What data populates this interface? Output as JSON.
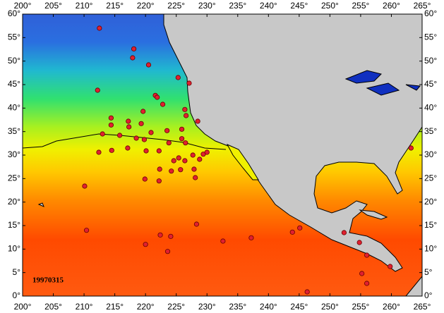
{
  "chart_data": {
    "type": "scatter",
    "annotation": "19970315",
    "xlim": [
      200,
      265
    ],
    "ylim": [
      0,
      60
    ],
    "xticks": [
      {
        "value": 200,
        "label": "200°"
      },
      {
        "value": 205,
        "label": "205°"
      },
      {
        "value": 210,
        "label": "210°"
      },
      {
        "value": 215,
        "label": "215°"
      },
      {
        "value": 220,
        "label": "220°"
      },
      {
        "value": 225,
        "label": "225°"
      },
      {
        "value": 230,
        "label": "230°"
      },
      {
        "value": 235,
        "label": "235°"
      },
      {
        "value": 240,
        "label": "240°"
      },
      {
        "value": 245,
        "label": "245°"
      },
      {
        "value": 250,
        "label": "250°"
      },
      {
        "value": 255,
        "label": "255°"
      },
      {
        "value": 260,
        "label": "260°"
      },
      {
        "value": 265,
        "label": "265°"
      }
    ],
    "yticks": [
      {
        "value": 0,
        "label": "0°"
      },
      {
        "value": 5,
        "label": "5°"
      },
      {
        "value": 10,
        "label": "10°"
      },
      {
        "value": 15,
        "label": "15°"
      },
      {
        "value": 20,
        "label": "20°"
      },
      {
        "value": 25,
        "label": "25°"
      },
      {
        "value": 30,
        "label": "30°"
      },
      {
        "value": 35,
        "label": "35°"
      },
      {
        "value": 40,
        "label": "40°"
      },
      {
        "value": 45,
        "label": "45°"
      },
      {
        "value": 50,
        "label": "50°"
      },
      {
        "value": 55,
        "label": "55°"
      },
      {
        "value": 60,
        "label": "60°"
      }
    ],
    "color": "#e02030",
    "x": [
      212.5,
      218.1,
      217.9,
      220.5,
      212.2,
      221.6,
      221.9,
      227.1,
      225.3,
      222.8,
      219.6,
      214.4,
      214.4,
      217.2,
      217.3,
      219.3,
      226.4,
      226.6,
      228.5,
      223.5,
      225.9,
      213,
      215.8,
      218.5,
      219.8,
      220.9,
      223.8,
      225.9,
      226.5,
      212.4,
      214.5,
      217.1,
      220.1,
      222.2,
      225.4,
      226.4,
      224.6,
      227.7,
      228.8,
      229.4,
      230,
      227.9,
      228.1,
      224.2,
      225.7,
      222.3,
      222.2,
      219.9,
      210.1,
      210.4,
      222.4,
      220,
      224.1,
      223.6,
      228.3,
      232.6,
      237.2,
      245.1,
      243.9,
      252.3,
      254.8,
      256,
      255.2,
      256,
      259.8,
      246.3,
      263.2
    ],
    "y": [
      57,
      52.6,
      50.7,
      49.2,
      43.8,
      42.7,
      42.3,
      45.3,
      46.5,
      40.8,
      39.3,
      37.9,
      36.4,
      37.2,
      36,
      36.7,
      39.7,
      38.4,
      37.2,
      35.2,
      35.5,
      34.5,
      34.2,
      33.6,
      33.3,
      34.8,
      32.6,
      33.5,
      32.6,
      30.6,
      31,
      31.5,
      30.9,
      30.9,
      29.4,
      28.8,
      28.8,
      30,
      29.1,
      30.2,
      30.6,
      27,
      25.2,
      26.6,
      26.9,
      27,
      24.5,
      24.9,
      23.4,
      14,
      13,
      11,
      12.7,
      9.5,
      15.3,
      11.7,
      12.4,
      14.5,
      13.6,
      13.5,
      11.4,
      8.7,
      4.8,
      2.7,
      6.3,
      0.9,
      31.5
    ]
  }
}
